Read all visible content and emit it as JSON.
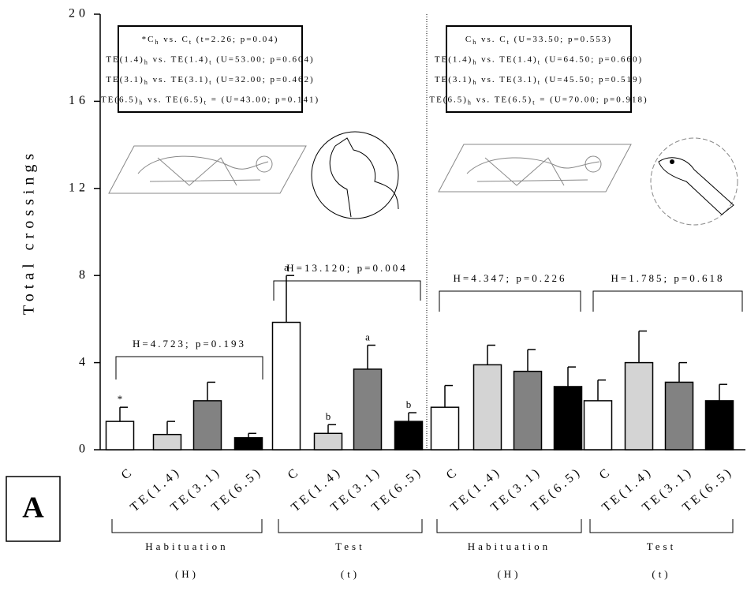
{
  "chart_data": {
    "type": "bar",
    "panel_label": "A",
    "ylabel": "Total crossings",
    "ylim": [
      0,
      20
    ],
    "yticks": [
      0,
      4,
      8,
      12,
      16,
      20
    ],
    "categories": [
      "C",
      "TE(1.4)",
      "TE(3.1)",
      "TE(6.5)",
      "C",
      "TE(1.4)",
      "TE(3.1)",
      "TE(6.5)",
      "C",
      "TE(1.4)",
      "TE(3.1)",
      "TE(6.5)",
      "C",
      "TE(1.4)",
      "TE(3.1)",
      "TE(6.5)"
    ],
    "values": [
      1.3,
      0.7,
      2.25,
      0.55,
      5.85,
      0.75,
      3.7,
      1.3,
      1.95,
      3.9,
      3.6,
      2.9,
      2.25,
      4.0,
      3.1,
      2.25
    ],
    "errors": [
      0.65,
      0.6,
      0.85,
      0.2,
      2.15,
      0.4,
      1.1,
      0.4,
      1.0,
      0.9,
      1.0,
      0.9,
      0.95,
      1.45,
      0.9,
      0.75
    ],
    "colors": [
      "#ffffff",
      "#d4d4d4",
      "#828282",
      "#000000",
      "#ffffff",
      "#d4d4d4",
      "#828282",
      "#000000",
      "#ffffff",
      "#d4d4d4",
      "#828282",
      "#000000",
      "#ffffff",
      "#d4d4d4",
      "#828282",
      "#000000"
    ],
    "bar_labels": [
      "*",
      null,
      null,
      null,
      "a",
      "b",
      "a",
      "b",
      null,
      null,
      null,
      null,
      null,
      null,
      null,
      null
    ],
    "groups": [
      {
        "label": "Habituation",
        "sublabel": "(H)",
        "stat": "H=4.723; p=0.193"
      },
      {
        "label": "Test",
        "sublabel": "(t)",
        "stat": "H=13.120; p=0.004"
      },
      {
        "label": "Habituation",
        "sublabel": "(H)",
        "stat": "H=4.347; p=0.226"
      },
      {
        "label": "Test",
        "sublabel": "(t)",
        "stat": "H=1.785; p=0.618"
      }
    ],
    "stat_boxes": [
      [
        [
          "*C",
          "h",
          " vs. C",
          "t",
          " (t=2.26; p=0.04)"
        ],
        [
          "TE(1.4)",
          "h",
          " vs. TE(1.4)",
          "t",
          " (U=53.00; p=0.604)"
        ],
        [
          "TE(3.1)",
          "h",
          " vs. TE(3.1)",
          "t",
          " (U=32.00; p=0.462)"
        ],
        [
          "TE(6.5)",
          "h",
          " vs. TE(6.5)",
          "t",
          " = (U=43.00; p=0.141)"
        ]
      ],
      [
        [
          "C",
          "h",
          " vs. C",
          "t",
          " (U=33.50; p=0.553)"
        ],
        [
          "TE(1.4)",
          "h",
          " vs. TE(1.4)",
          "t",
          " (U=64.50; p=0.660)"
        ],
        [
          "TE(3.1)",
          "h",
          " vs. TE(3.1)",
          "t",
          " (U=45.50; p=0.519)"
        ],
        [
          "TE(6.5)",
          "h",
          " vs. TE(6.5)",
          "t",
          " = (U=70.00; p=0.918)"
        ]
      ]
    ]
  }
}
